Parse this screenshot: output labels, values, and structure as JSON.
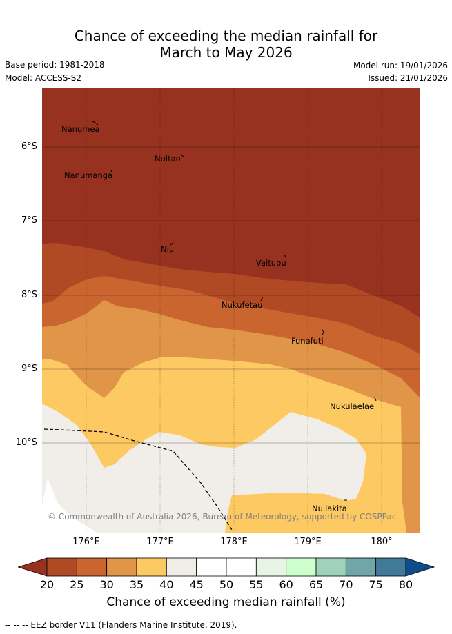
{
  "title_line1": "Chance of exceeding the median rainfall for",
  "title_line2": "March to May 2026",
  "base_period": "Base period: 1981-2018",
  "model": "Model: ACCESS-S2",
  "model_run": "Model run: 19/01/2026",
  "issued": "Issued: 21/01/2026",
  "y_ticks": [
    "6°S",
    "7°S",
    "8°S",
    "9°S",
    "10°S"
  ],
  "x_ticks": [
    "176°E",
    "177°E",
    "178°E",
    "179°E",
    "180°"
  ],
  "islands": [
    "Nanumea",
    "Nuitao",
    "Nanumanga",
    "Niu",
    "Vaitupu",
    "Nukufetau",
    "Funafuti",
    "Nukulaelae",
    "Nuilakita"
  ],
  "copyright": "© Commonwealth of Australia 2026, Bureau of Meteorology, supported by COSPPac",
  "colorbar": {
    "ticks": [
      "20",
      "25",
      "30",
      "35",
      "40",
      "45",
      "50",
      "55",
      "60",
      "65",
      "70",
      "75",
      "80"
    ],
    "colors": [
      "#b04a24",
      "#cb6530",
      "#e09548",
      "#fdc962",
      "#f1ede8",
      "#ffffff",
      "#ffffff",
      "#e8f5e6",
      "#ccffcc",
      "#9fd1bb",
      "#71a6a9",
      "#417a99"
    ],
    "under_color": "#96321f",
    "over_color": "#0f4c8a",
    "label": "Chance of exceeding median rainfall (%)"
  },
  "eez_note": "--  --  -- EEZ border V11 (Flanders Marine Institute, 2019)."
}
